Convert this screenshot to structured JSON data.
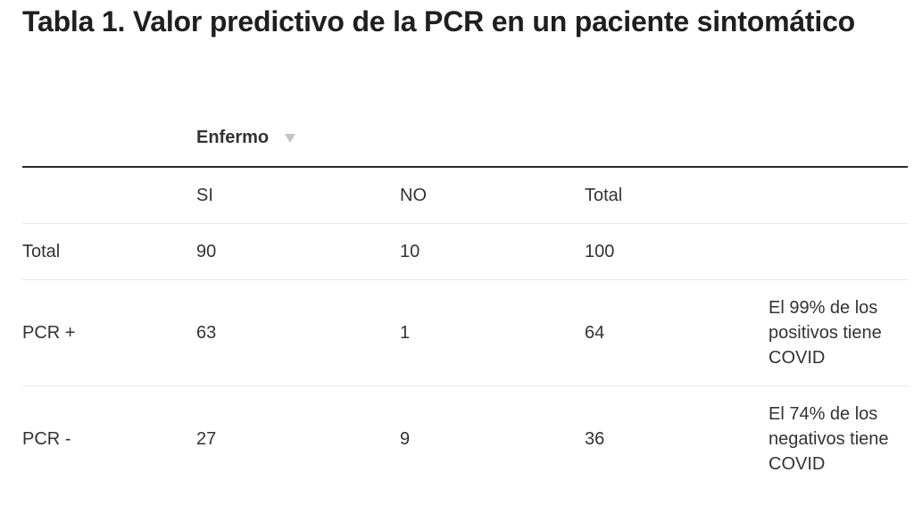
{
  "title": "Tabla 1. Valor predictivo de la PCR en un paciente sintomático",
  "header": {
    "group_label": "Enfermo",
    "sort_icon": "triangle-down-icon"
  },
  "columns": [
    "SI",
    "NO",
    "Total"
  ],
  "rows": [
    {
      "label": "Total",
      "si": "90",
      "no": "10",
      "total": "100",
      "note": ""
    },
    {
      "label": "PCR +",
      "si": "63",
      "no": "1",
      "total": "64",
      "note": "El 99% de los positivos tiene COVID"
    },
    {
      "label": "PCR -",
      "si": "27",
      "no": "9",
      "total": "36",
      "note": "El 74% de los negativos tiene COVID"
    }
  ]
}
